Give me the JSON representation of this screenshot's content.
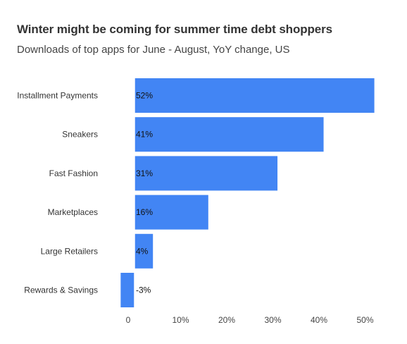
{
  "chart_data": {
    "type": "bar",
    "orientation": "horizontal",
    "title": "Winter might be coming for summer time debt shoppers",
    "subtitle": "Downloads of top apps for June - August, YoY change, US",
    "categories": [
      "Installment Payments",
      "Sneakers",
      "Fast Fashion",
      "Marketplaces",
      "Large Retailers",
      "Rewards & Savings"
    ],
    "values": [
      52,
      41,
      31,
      16,
      4,
      -3
    ],
    "value_labels": [
      "52%",
      "41%",
      "31%",
      "16%",
      "4%",
      "-3%"
    ],
    "xticks": [
      {
        "value": 0,
        "label": "0"
      },
      {
        "value": 10,
        "label": "10%"
      },
      {
        "value": 20,
        "label": "20%"
      },
      {
        "value": 30,
        "label": "30%"
      },
      {
        "value": 40,
        "label": "40%"
      },
      {
        "value": 50,
        "label": "50%"
      }
    ],
    "xlim": [
      -3,
      52
    ],
    "bar_color": "#4285f4",
    "grid": false,
    "legend": "none"
  }
}
